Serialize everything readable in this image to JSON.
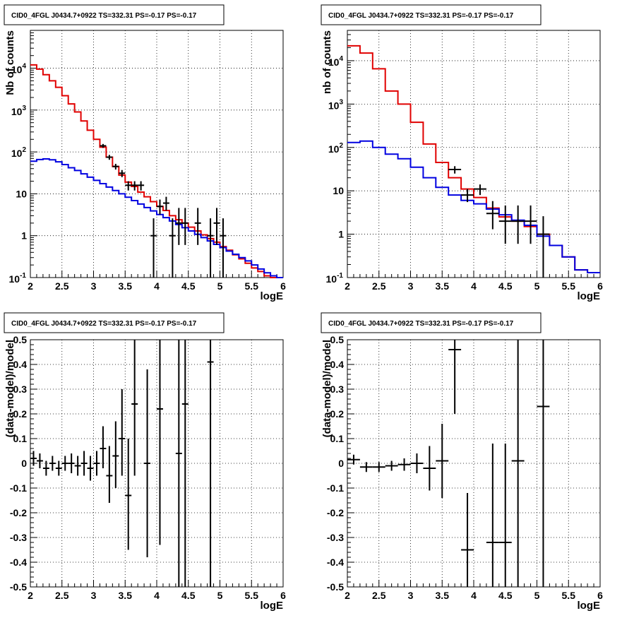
{
  "chart_data": [
    {
      "type": "line",
      "title": "CID0_4FGL J0434.7+0922 TS=332.31 PS=-0.17 PS=-0.17",
      "xlabel": "logE",
      "ylabel": "Nb of counts",
      "xlim": [
        2,
        6
      ],
      "ylim": [
        0.1,
        80000
      ],
      "yscale": "log",
      "grid": true,
      "x_ticks": [
        "2",
        "2.5",
        "3",
        "3.5",
        "4",
        "4.5",
        "5",
        "5.5",
        "6"
      ],
      "y_ticks": [
        "10^-1",
        "1",
        "10",
        "10^2",
        "10^3",
        "10^4"
      ],
      "bin_edges": [
        2.0,
        2.1,
        2.2,
        2.3,
        2.4,
        2.5,
        2.6,
        2.7,
        2.8,
        2.9,
        3.0,
        3.1,
        3.2,
        3.3,
        3.4,
        3.5,
        3.6,
        3.7,
        3.8,
        3.9,
        4.0,
        4.1,
        4.2,
        4.3,
        4.4,
        4.5,
        4.6,
        4.7,
        4.8,
        4.9,
        5.0,
        5.1,
        5.2,
        5.3,
        5.4,
        5.5,
        5.6,
        5.7,
        5.8,
        5.9,
        6.0
      ],
      "series": [
        {
          "color": "#e00000",
          "style": "step",
          "values": [
            12000,
            9500,
            7000,
            5000,
            3500,
            2200,
            1400,
            900,
            550,
            330,
            200,
            130,
            75,
            45,
            28,
            19,
            15,
            11,
            8.5,
            6.5,
            5,
            4,
            3,
            2.4,
            2,
            1.6,
            1.3,
            1.05,
            0.85,
            0.7,
            0.55,
            0.45,
            0.35,
            0.28,
            0.22,
            0.17,
            0.14,
            0.11,
            0.1,
            0.1
          ]
        },
        {
          "color": "#0000e0",
          "style": "step",
          "values": [
            60,
            66,
            68,
            65,
            58,
            50,
            42,
            36,
            30,
            25,
            21,
            17.5,
            14.5,
            12,
            10,
            8.3,
            6.9,
            5.7,
            4.7,
            3.9,
            3.2,
            2.7,
            2.25,
            1.85,
            1.55,
            1.3,
            1.08,
            0.9,
            0.75,
            0.62,
            0.52,
            0.43,
            0.36,
            0.3,
            0.25,
            0.2,
            0.16,
            0.13,
            0.11,
            0.1
          ]
        },
        {
          "name": "data",
          "color": "#000000",
          "style": "points",
          "points": [
            {
              "x": 3.15,
              "y": 140,
              "lo": 125,
              "hi": 155
            },
            {
              "x": 3.25,
              "y": 75,
              "lo": 65,
              "hi": 85
            },
            {
              "x": 3.35,
              "y": 45,
              "lo": 38,
              "hi": 52
            },
            {
              "x": 3.45,
              "y": 31,
              "lo": 25,
              "hi": 37
            },
            {
              "x": 3.55,
              "y": 16,
              "lo": 12,
              "hi": 20
            },
            {
              "x": 3.65,
              "y": 16,
              "lo": 12,
              "hi": 20
            },
            {
              "x": 3.75,
              "y": 16,
              "lo": 12,
              "hi": 20
            },
            {
              "x": 3.95,
              "y": 1,
              "lo": 0.1,
              "hi": 2.6
            },
            {
              "x": 4.05,
              "y": 5,
              "lo": 3.2,
              "hi": 7.3
            },
            {
              "x": 4.15,
              "y": 6,
              "lo": 4,
              "hi": 8.5
            },
            {
              "x": 4.25,
              "y": 1,
              "lo": 0.1,
              "hi": 2.6
            },
            {
              "x": 4.35,
              "y": 2,
              "lo": 0.6,
              "hi": 4.6
            },
            {
              "x": 4.45,
              "y": 2,
              "lo": 0.6,
              "hi": 4.6
            },
            {
              "x": 4.65,
              "y": 2,
              "lo": 0.6,
              "hi": 4.6
            },
            {
              "x": 4.85,
              "y": 1,
              "lo": 0.1,
              "hi": 2.6
            },
            {
              "x": 4.95,
              "y": 2,
              "lo": 0.6,
              "hi": 4.6
            },
            {
              "x": 5.05,
              "y": 1,
              "lo": 0.1,
              "hi": 2.6
            }
          ]
        }
      ]
    },
    {
      "type": "line",
      "title": "CID0_4FGL J0434.7+0922 TS=332.31 PS=-0.17 PS=-0.17",
      "xlabel": "logE",
      "ylabel": "nb of counts",
      "xlim": [
        2,
        6
      ],
      "ylim": [
        0.1,
        50000
      ],
      "yscale": "log",
      "grid": true,
      "x_ticks": [
        "2",
        "2.5",
        "3",
        "3.5",
        "4",
        "4.5",
        "5",
        "5.5",
        "6"
      ],
      "y_ticks": [
        "10^-1",
        "1",
        "10",
        "10^2",
        "10^3",
        "10^4"
      ],
      "bin_edges": [
        2.0,
        2.2,
        2.4,
        2.6,
        2.8,
        3.0,
        3.2,
        3.4,
        3.6,
        3.8,
        4.0,
        4.2,
        4.4,
        4.6,
        4.8,
        5.0,
        5.2,
        5.4,
        5.6,
        5.8,
        6.0
      ],
      "series": [
        {
          "color": "#e00000",
          "style": "step",
          "values": [
            22000,
            15000,
            6500,
            2000,
            1000,
            380,
            120,
            45,
            20,
            11,
            7,
            4,
            2.5,
            2,
            1.5,
            1,
            0.55,
            0.3,
            0.15,
            0.13
          ]
        },
        {
          "color": "#0000e0",
          "style": "step",
          "values": [
            130,
            140,
            100,
            70,
            55,
            35,
            20,
            12,
            8,
            6,
            5,
            3.8,
            2.8,
            2.1,
            1.6,
            0.9,
            0.55,
            0.3,
            0.15,
            0.13
          ]
        },
        {
          "name": "data",
          "color": "#000000",
          "style": "points",
          "points": [
            {
              "x": 3.7,
              "y": 31,
              "lo": 25,
              "hi": 37
            },
            {
              "x": 3.9,
              "y": 8,
              "lo": 5.5,
              "hi": 11
            },
            {
              "x": 4.1,
              "y": 11,
              "lo": 8,
              "hi": 14
            },
            {
              "x": 4.3,
              "y": 3,
              "lo": 1.3,
              "hi": 5.8
            },
            {
              "x": 4.5,
              "y": 2,
              "lo": 0.6,
              "hi": 4.6
            },
            {
              "x": 4.7,
              "y": 2,
              "lo": 0.6,
              "hi": 4.6
            },
            {
              "x": 4.9,
              "y": 2,
              "lo": 0.6,
              "hi": 4.6
            },
            {
              "x": 5.1,
              "y": 1,
              "lo": 0.1,
              "hi": 2.6
            }
          ]
        }
      ]
    },
    {
      "type": "scatter",
      "title": "CID0_4FGL J0434.7+0922 TS=332.31 PS=-0.17 PS=-0.17",
      "xlabel": "logE",
      "ylabel": "(data-model)/model",
      "xlim": [
        2,
        6
      ],
      "ylim": [
        -0.5,
        0.5
      ],
      "grid": true,
      "x_ticks": [
        "2",
        "2.5",
        "3",
        "3.5",
        "4",
        "4.5",
        "5",
        "5.5",
        "6"
      ],
      "y_ticks": [
        "-0.5",
        "-0.4",
        "-0.3",
        "-0.2",
        "-0.1",
        "0",
        "0.1",
        "0.2",
        "0.3",
        "0.4",
        "0.5"
      ],
      "series": [
        {
          "color": "#000000",
          "points": [
            {
              "x": 2.05,
              "y": 0.02,
              "lo": -0.01,
              "hi": 0.05,
              "w": 0.05
            },
            {
              "x": 2.15,
              "y": 0.01,
              "lo": -0.02,
              "hi": 0.04,
              "w": 0.05
            },
            {
              "x": 2.25,
              "y": -0.02,
              "lo": -0.05,
              "hi": 0.01,
              "w": 0.05
            },
            {
              "x": 2.35,
              "y": 0.0,
              "lo": -0.03,
              "hi": 0.03,
              "w": 0.05
            },
            {
              "x": 2.45,
              "y": -0.02,
              "lo": -0.05,
              "hi": 0.01,
              "w": 0.05
            },
            {
              "x": 2.55,
              "y": 0.0,
              "lo": -0.03,
              "hi": 0.03,
              "w": 0.05
            },
            {
              "x": 2.65,
              "y": 0.0,
              "lo": -0.04,
              "hi": 0.04,
              "w": 0.05
            },
            {
              "x": 2.75,
              "y": -0.01,
              "lo": -0.05,
              "hi": 0.03,
              "w": 0.05
            },
            {
              "x": 2.85,
              "y": 0.0,
              "lo": -0.05,
              "hi": 0.05,
              "w": 0.05
            },
            {
              "x": 2.95,
              "y": -0.02,
              "lo": -0.07,
              "hi": 0.03,
              "w": 0.05
            },
            {
              "x": 3.05,
              "y": 0.0,
              "lo": -0.05,
              "hi": 0.05,
              "w": 0.05
            },
            {
              "x": 3.15,
              "y": 0.06,
              "lo": -0.02,
              "hi": 0.15,
              "w": 0.05
            },
            {
              "x": 3.25,
              "y": -0.05,
              "lo": -0.16,
              "hi": 0.07,
              "w": 0.05
            },
            {
              "x": 3.35,
              "y": 0.03,
              "lo": -0.1,
              "hi": 0.17,
              "w": 0.05
            },
            {
              "x": 3.45,
              "y": 0.1,
              "lo": -0.05,
              "hi": 0.3,
              "w": 0.05
            },
            {
              "x": 3.55,
              "y": -0.13,
              "lo": -0.35,
              "hi": 0.1,
              "w": 0.05
            },
            {
              "x": 3.65,
              "y": 0.24,
              "lo": -0.05,
              "hi": 0.55,
              "w": 0.05
            },
            {
              "x": 3.85,
              "y": 0.0,
              "lo": -0.38,
              "hi": 0.38,
              "w": 0.05
            },
            {
              "x": 4.05,
              "y": 0.22,
              "lo": -0.33,
              "hi": 0.7,
              "w": 0.05
            },
            {
              "x": 4.35,
              "y": 0.04,
              "lo": -0.5,
              "hi": 0.8,
              "w": 0.05
            },
            {
              "x": 4.45,
              "y": 0.24,
              "lo": -0.5,
              "hi": 0.9,
              "w": 0.05
            },
            {
              "x": 4.85,
              "y": 0.41,
              "lo": -0.5,
              "hi": 1.0,
              "w": 0.05
            }
          ]
        }
      ]
    },
    {
      "type": "scatter",
      "title": "CID0_4FGL J0434.7+0922 TS=332.31 PS=-0.17 PS=-0.17",
      "xlabel": "logE",
      "ylabel": "(data-model)/model",
      "xlim": [
        2,
        6
      ],
      "ylim": [
        -0.5,
        0.5
      ],
      "grid": true,
      "x_ticks": [
        "2",
        "2.5",
        "3",
        "3.5",
        "4",
        "4.5",
        "5",
        "5.5",
        "6"
      ],
      "y_ticks": [
        "-0.5",
        "-0.4",
        "-0.3",
        "-0.2",
        "-0.1",
        "0",
        "0.1",
        "0.2",
        "0.3",
        "0.4",
        "0.5"
      ],
      "series": [
        {
          "color": "#000000",
          "points": [
            {
              "x": 2.1,
              "y": 0.015,
              "lo": -0.005,
              "hi": 0.035,
              "w": 0.1
            },
            {
              "x": 2.3,
              "y": -0.015,
              "lo": -0.035,
              "hi": 0.005,
              "w": 0.1
            },
            {
              "x": 2.5,
              "y": -0.015,
              "lo": -0.035,
              "hi": 0.005,
              "w": 0.1
            },
            {
              "x": 2.7,
              "y": -0.01,
              "lo": -0.03,
              "hi": 0.01,
              "w": 0.1
            },
            {
              "x": 2.9,
              "y": -0.005,
              "lo": -0.03,
              "hi": 0.02,
              "w": 0.1
            },
            {
              "x": 3.1,
              "y": 0.0,
              "lo": -0.04,
              "hi": 0.04,
              "w": 0.1
            },
            {
              "x": 3.3,
              "y": -0.02,
              "lo": -0.11,
              "hi": 0.07,
              "w": 0.1
            },
            {
              "x": 3.5,
              "y": 0.01,
              "lo": -0.14,
              "hi": 0.16,
              "w": 0.1
            },
            {
              "x": 3.7,
              "y": 0.46,
              "lo": 0.2,
              "hi": 0.72,
              "w": 0.1
            },
            {
              "x": 3.9,
              "y": -0.35,
              "lo": -0.5,
              "hi": -0.12,
              "w": 0.1
            },
            {
              "x": 4.3,
              "y": -0.32,
              "lo": -0.5,
              "hi": 0.08,
              "w": 0.1
            },
            {
              "x": 4.5,
              "y": -0.32,
              "lo": -0.5,
              "hi": 0.08,
              "w": 0.1
            },
            {
              "x": 4.7,
              "y": 0.01,
              "lo": -0.5,
              "hi": 0.6,
              "w": 0.1
            },
            {
              "x": 5.1,
              "y": 0.23,
              "lo": -0.5,
              "hi": 0.9,
              "w": 0.1
            }
          ]
        }
      ]
    }
  ]
}
